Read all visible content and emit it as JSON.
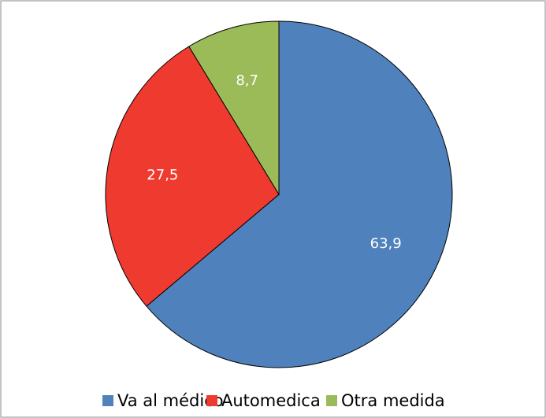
{
  "chart_data": {
    "type": "pie",
    "categories": [
      "Va al médico",
      "Automedica",
      "Otra medida"
    ],
    "values": [
      63.9,
      27.5,
      8.7
    ],
    "value_labels": [
      "63,9",
      "27,5",
      "8,7"
    ],
    "colors": [
      "#4f81bd",
      "#ef3a2f",
      "#9bbb59"
    ],
    "legend": "bottom"
  }
}
